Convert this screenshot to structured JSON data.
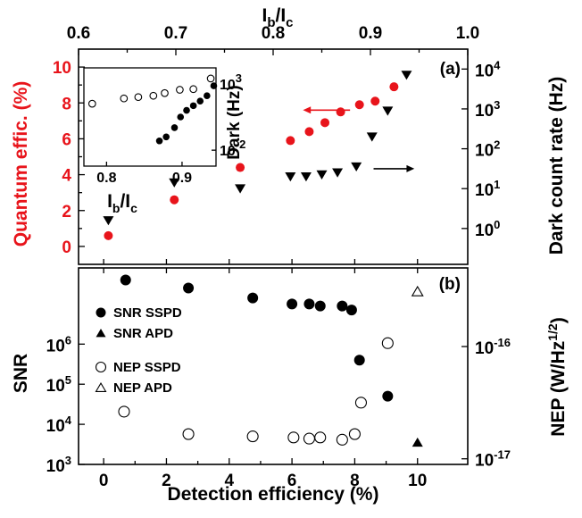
{
  "chart_data": [
    {
      "id": "a",
      "type": "scatter",
      "panel_label": "(a)",
      "top_axis": {
        "label_main": "I",
        "label_sub1": "b",
        "label_mid": "/I",
        "label_sub2": "c",
        "range": [
          0.6,
          1.0
        ],
        "ticks": [
          "0.6",
          "0.7",
          "0.8",
          "0.9",
          "1.0"
        ]
      },
      "x_range": [
        -0.8,
        11.6
      ],
      "left_axis": {
        "label": "Quantum effic. (%)",
        "range": [
          -1,
          11
        ],
        "ticks": [
          "0",
          "2",
          "4",
          "6",
          "8",
          "10"
        ],
        "color": "#e8141b"
      },
      "right_axis": {
        "label": "Dark count rate (Hz)",
        "log_range": [
          -0.9,
          4.5
        ],
        "ticks": [
          {
            "base": "10",
            "exp": "0",
            "v": 0
          },
          {
            "base": "10",
            "exp": "1",
            "v": 1
          },
          {
            "base": "10",
            "exp": "2",
            "v": 2
          },
          {
            "base": "10",
            "exp": "3",
            "v": 3
          },
          {
            "base": "10",
            "exp": "4",
            "v": 4
          }
        ]
      },
      "series": [
        {
          "marker": "circle-red",
          "axis": "left",
          "points": [
            [
              0.15,
              0.6
            ],
            [
              2.25,
              2.6
            ],
            [
              4.35,
              4.4
            ],
            [
              5.95,
              5.9
            ],
            [
              6.55,
              6.4
            ],
            [
              7.05,
              6.9
            ],
            [
              7.55,
              7.5
            ],
            [
              8.15,
              7.9
            ],
            [
              8.65,
              8.1
            ],
            [
              9.25,
              8.9
            ]
          ]
        },
        {
          "marker": "triangle-down",
          "axis": "right",
          "points": [
            [
              0.15,
              0.2
            ],
            [
              2.25,
              1.15
            ],
            [
              4.35,
              1.0
            ],
            [
              5.95,
              1.3
            ],
            [
              6.45,
              1.3
            ],
            [
              6.95,
              1.35
            ],
            [
              7.45,
              1.4
            ],
            [
              8.05,
              1.55
            ],
            [
              8.55,
              2.3
            ],
            [
              9.05,
              2.95
            ],
            [
              9.65,
              3.85
            ]
          ]
        }
      ],
      "arrows": [
        {
          "direction": "left",
          "near": "circle-red"
        },
        {
          "direction": "right",
          "near": "triangle-down"
        }
      ],
      "inset": {
        "xlabel_main": "I",
        "xlabel_sub1": "b",
        "xlabel_mid": "/I",
        "xlabel_sub2": "c",
        "ylabel": "Dark (Hz)",
        "x_range": [
          0.77,
          0.945
        ],
        "x_ticks": [
          "0.8",
          "0.9"
        ],
        "y_log_range": [
          -3.2,
          4.2
        ],
        "y_ticks": [
          {
            "base": "10",
            "exp": "-2",
            "v": -2
          },
          {
            "base": "10",
            "exp": "3",
            "v": 3
          }
        ],
        "series": [
          {
            "marker": "circle-open",
            "points": [
              [
                0.781,
                1.5
              ],
              [
                0.823,
                1.9
              ],
              [
                0.842,
                2.0
              ],
              [
                0.862,
                2.1
              ],
              [
                0.877,
                2.3
              ],
              [
                0.897,
                2.55
              ],
              [
                0.915,
                2.6
              ],
              [
                0.938,
                3.4
              ]
            ]
          },
          {
            "marker": "circle-filled",
            "points": [
              [
                0.87,
                -1.3
              ],
              [
                0.879,
                -1.0
              ],
              [
                0.89,
                -0.3
              ],
              [
                0.898,
                0.5
              ],
              [
                0.906,
                1.0
              ],
              [
                0.915,
                1.35
              ],
              [
                0.924,
                1.7
              ],
              [
                0.933,
                2.1
              ],
              [
                0.942,
                2.85
              ]
            ]
          }
        ]
      }
    },
    {
      "id": "b",
      "type": "scatter",
      "panel_label": "(b)",
      "xlabel": "Detection efficiency (%)",
      "x_range": [
        -0.8,
        11.6
      ],
      "x_ticks": [
        "0",
        "2",
        "4",
        "6",
        "8",
        "10"
      ],
      "left_axis": {
        "label": "SNR",
        "log_range": [
          3.0,
          7.9
        ],
        "ticks": [
          {
            "base": "10",
            "exp": "3",
            "v": 3
          },
          {
            "base": "10",
            "exp": "4",
            "v": 4
          },
          {
            "base": "10",
            "exp": "5",
            "v": 5
          },
          {
            "base": "10",
            "exp": "6",
            "v": 6
          }
        ]
      },
      "right_axis": {
        "label_main": "NEP (W/Hz",
        "label_exp": "1/2",
        "label_end": ")",
        "log_range": [
          -17.05,
          -15.3
        ],
        "ticks": [
          {
            "base": "10",
            "exp": "-16",
            "v": -16
          },
          {
            "base": "10",
            "exp": "-17",
            "v": -17
          }
        ]
      },
      "legend": [
        {
          "marker": "circle-filled",
          "label": "SNR SSPD"
        },
        {
          "marker": "triangle-filled",
          "label": "SNR APD"
        },
        {
          "marker": "circle-open",
          "label": "NEP SSPD"
        },
        {
          "marker": "triangle-open",
          "label": "NEP APD"
        }
      ],
      "series": [
        {
          "name": "SNR SSPD",
          "marker": "circle-filled",
          "axis": "left",
          "points": [
            [
              0.7,
              7.6
            ],
            [
              2.7,
              7.4
            ],
            [
              4.75,
              7.15
            ],
            [
              6.0,
              7.0
            ],
            [
              6.55,
              7.0
            ],
            [
              6.9,
              6.95
            ],
            [
              7.6,
              6.95
            ],
            [
              7.9,
              6.85
            ],
            [
              8.15,
              5.6
            ],
            [
              9.05,
              4.7
            ]
          ]
        },
        {
          "name": "SNR APD",
          "marker": "triangle-filled",
          "axis": "left",
          "points": [
            [
              10.0,
              3.55
            ]
          ]
        },
        {
          "name": "NEP SSPD",
          "marker": "circle-open",
          "axis": "right",
          "points": [
            [
              0.65,
              -16.58
            ],
            [
              2.7,
              -16.78
            ],
            [
              4.75,
              -16.8
            ],
            [
              6.05,
              -16.81
            ],
            [
              6.55,
              -16.82
            ],
            [
              6.9,
              -16.81
            ],
            [
              7.6,
              -16.83
            ],
            [
              8.0,
              -16.78
            ],
            [
              8.2,
              -16.5
            ],
            [
              9.05,
              -15.97
            ]
          ]
        },
        {
          "name": "NEP APD",
          "marker": "triangle-open",
          "axis": "right",
          "points": [
            [
              10.0,
              -15.51
            ]
          ]
        }
      ]
    }
  ]
}
